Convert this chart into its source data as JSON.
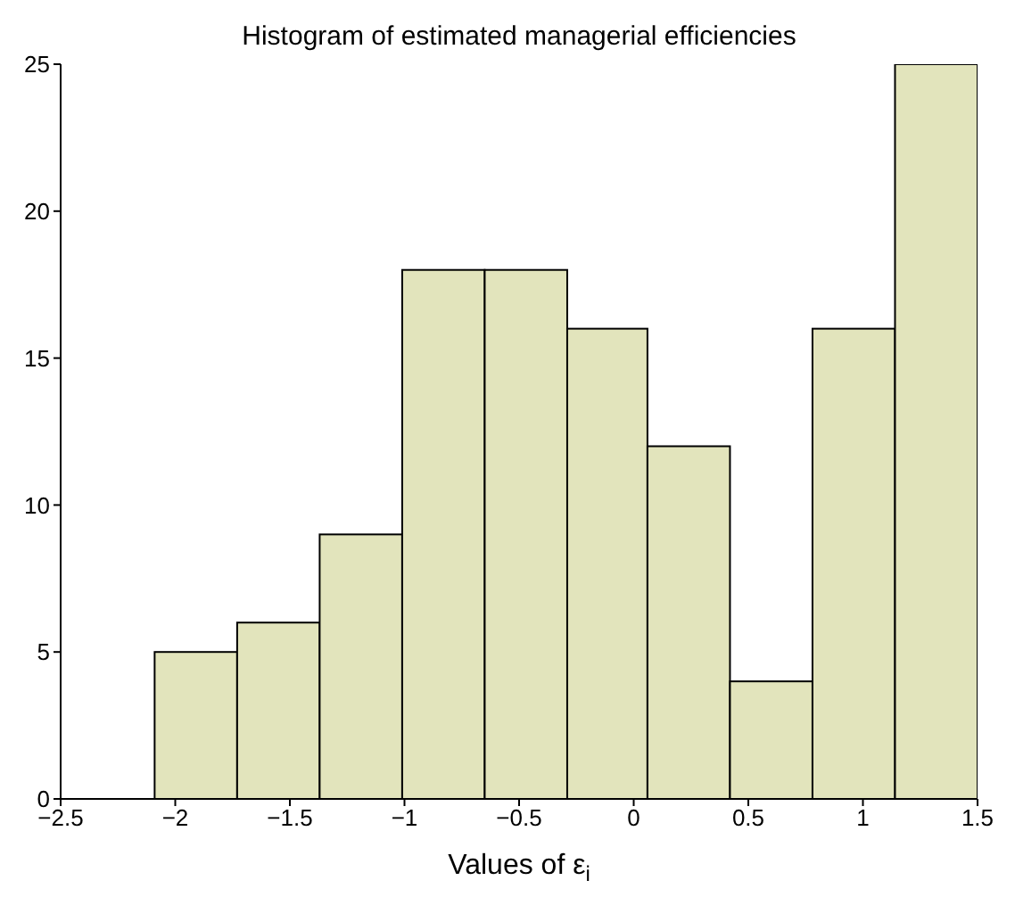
{
  "chart_data": {
    "type": "histogram",
    "title": "Histogram of estimated managerial efficiencies",
    "xlabel": "Values of ε$_{i}$",
    "bins": [
      -2.09,
      -1.73,
      -1.37,
      -1.01,
      -0.65,
      -0.29,
      0.06,
      0.42,
      0.78,
      1.14,
      1.5
    ],
    "values": [
      5,
      6,
      9,
      18,
      18,
      16,
      12,
      4,
      16,
      25
    ],
    "color": "#e2e4bc",
    "xlim": [
      -2.5,
      1.5
    ],
    "xticks": [
      {
        "value": -2.5,
        "label": "−2.5"
      },
      {
        "value": -2,
        "label": "−2"
      },
      {
        "value": -1.5,
        "label": "−1.5"
      },
      {
        "value": -1,
        "label": "−1"
      },
      {
        "value": -0.5,
        "label": "−0.5"
      },
      0,
      0.5,
      1,
      1.5
    ],
    "ylim": [
      0,
      25
    ],
    "yticks": [
      0,
      5,
      10,
      15,
      20,
      25
    ],
    "grid": false,
    "legend": false
  }
}
